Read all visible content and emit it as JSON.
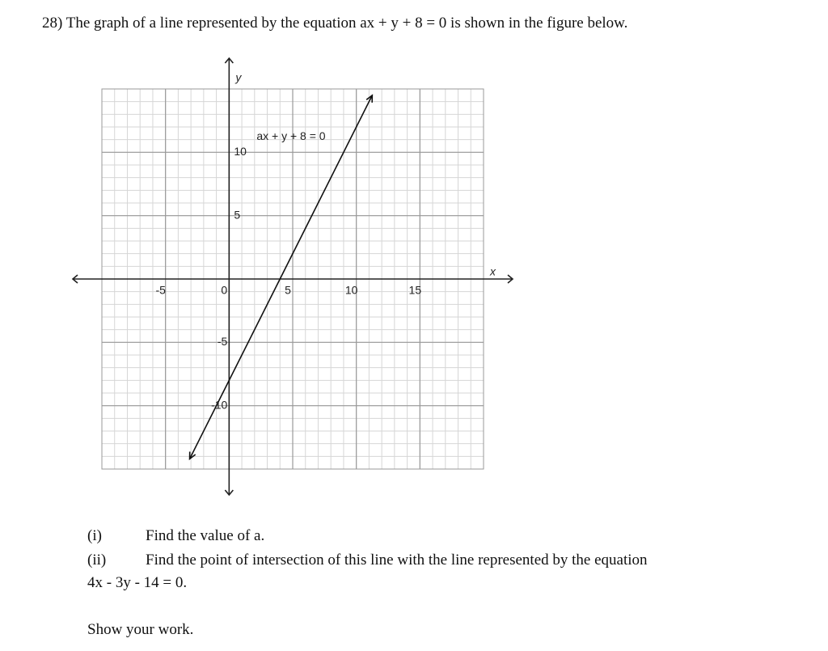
{
  "question": "28) The graph of a line represented by the equation ax + y + 8 = 0 is shown in the figure below.",
  "graph": {
    "xlim": [
      -10,
      20
    ],
    "ylim": [
      -15,
      15
    ],
    "xticks": [
      -5,
      0,
      5,
      10,
      15
    ],
    "yticks": [
      -10,
      -5,
      5,
      10
    ],
    "x_label": "x",
    "y_label": "y",
    "annotation": "ax + y + 8 = 0",
    "line": {
      "x": [
        -3.1,
        11.25
      ],
      "y": [
        -14.2,
        14.5
      ]
    }
  },
  "parts": [
    {
      "label": "(i)",
      "text": "Find the value of a."
    },
    {
      "label": "(ii)",
      "text": "Find the point of intersection of this line with the line represented by the equation",
      "continuation": "4x - 3y - 14 = 0."
    }
  ],
  "instruction": "Show your work."
}
